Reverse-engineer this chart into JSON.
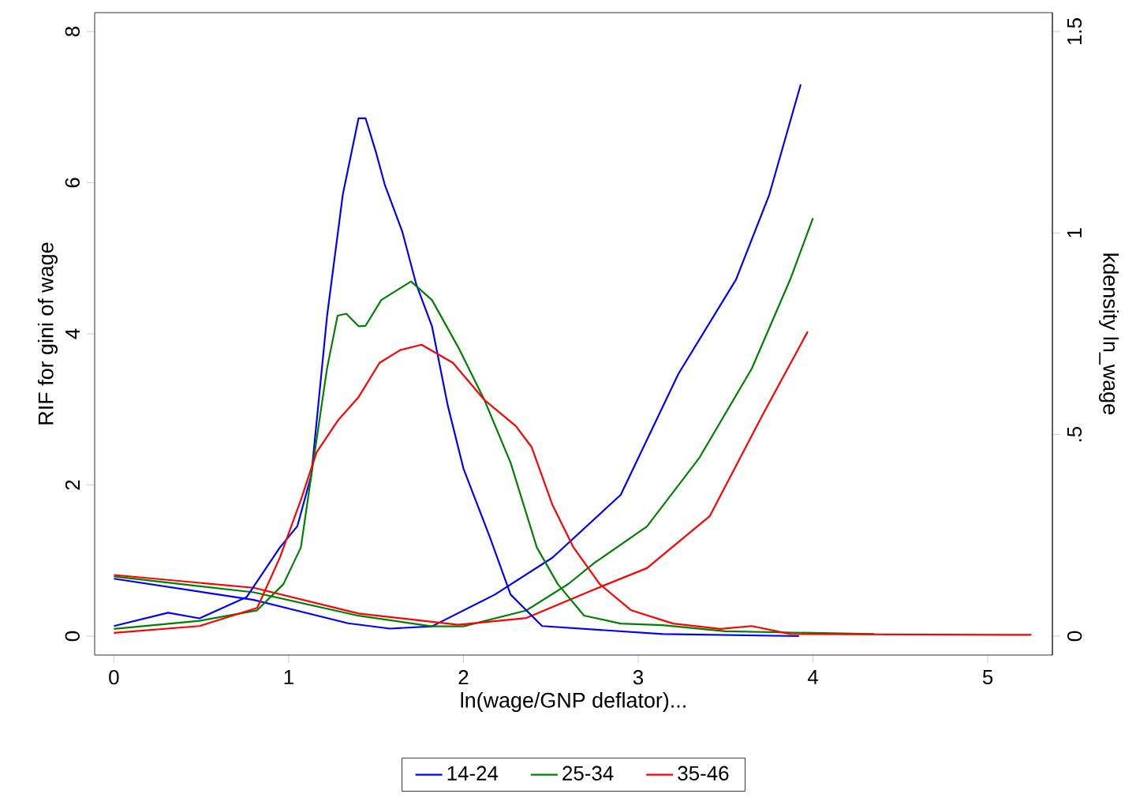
{
  "chart_data": {
    "type": "line",
    "xlabel": "ln(wage/GNP deflator)...",
    "ylabel": "RIF for gini of wage",
    "y2label": "kdensity ln_wage",
    "xlim": [
      -0.11,
      5.37
    ],
    "ylim": [
      -0.25,
      8.25
    ],
    "y2lim": [
      -0.047,
      1.547
    ],
    "xticks": [
      0,
      1,
      2,
      3,
      4,
      5
    ],
    "yticks": [
      0,
      2,
      4,
      6,
      8
    ],
    "y2ticks": [
      0,
      {
        "value": 0.5,
        "label": ".5"
      },
      1,
      1.5
    ],
    "legend": "bottom",
    "marker": "none",
    "series": [
      {
        "name": "14-24",
        "color": "#0000ff",
        "axis": "y",
        "x": [
          0,
          0.8,
          1.34,
          1.58,
          1.82,
          2.18,
          2.51,
          2.9,
          3.23,
          3.56,
          3.75,
          3.93
        ],
        "values": [
          0.76,
          0.48,
          0.17,
          0.1,
          0.13,
          0.55,
          1.04,
          1.87,
          3.47,
          4.72,
          5.84,
          7.3
        ]
      },
      {
        "name": "25-34",
        "color": "#008000",
        "axis": "y",
        "x": [
          0,
          0.8,
          1.4,
          1.82,
          2.0,
          2.36,
          2.6,
          2.75,
          3.05,
          3.35,
          3.65,
          3.87,
          4.0
        ],
        "values": [
          0.79,
          0.58,
          0.27,
          0.13,
          0.13,
          0.34,
          0.69,
          0.97,
          1.45,
          2.36,
          3.54,
          4.72,
          5.53
        ]
      },
      {
        "name": "35-46",
        "color": "#ff0000",
        "axis": "y",
        "x": [
          0,
          0.8,
          1.4,
          1.97,
          2.36,
          2.75,
          3.05,
          3.41,
          3.71,
          3.97
        ],
        "values": [
          0.81,
          0.64,
          0.3,
          0.15,
          0.24,
          0.62,
          0.9,
          1.59,
          2.92,
          4.03
        ]
      },
      {
        "color": "#0000ff",
        "axis": "y2",
        "x": [
          0,
          0.31,
          0.49,
          0.76,
          0.95,
          1.05,
          1.13,
          1.22,
          1.31,
          1.4,
          1.44,
          1.5,
          1.55,
          1.65,
          1.73,
          1.82,
          1.91,
          2.0,
          2.15,
          2.27,
          2.45,
          3.14,
          3.92
        ],
        "values": [
          0.025,
          0.058,
          0.044,
          0.097,
          0.22,
          0.273,
          0.4,
          0.795,
          1.096,
          1.285,
          1.285,
          1.2,
          1.12,
          1.004,
          0.873,
          0.769,
          0.573,
          0.416,
          0.247,
          0.103,
          0.025,
          0.005,
          0
        ]
      },
      {
        "color": "#008000",
        "axis": "y2",
        "x": [
          0,
          0.49,
          0.82,
          0.97,
          1.07,
          1.13,
          1.22,
          1.28,
          1.33,
          1.4,
          1.44,
          1.53,
          1.7,
          1.82,
          1.97,
          2.12,
          2.27,
          2.42,
          2.54,
          2.69,
          2.9,
          3.14,
          3.5,
          4.35
        ],
        "values": [
          0.018,
          0.038,
          0.064,
          0.129,
          0.22,
          0.4,
          0.665,
          0.795,
          0.8,
          0.769,
          0.77,
          0.834,
          0.88,
          0.834,
          0.717,
          0.586,
          0.43,
          0.22,
          0.129,
          0.051,
          0.031,
          0.027,
          0.012,
          0.005
        ]
      },
      {
        "color": "#ff0000",
        "axis": "y2",
        "x": [
          0,
          0.49,
          0.82,
          0.95,
          1.07,
          1.16,
          1.28,
          1.4,
          1.52,
          1.64,
          1.76,
          1.94,
          2.12,
          2.3,
          2.39,
          2.51,
          2.63,
          2.78,
          2.96,
          3.2,
          3.47,
          3.65,
          3.87,
          5.25
        ],
        "values": [
          0.008,
          0.025,
          0.07,
          0.195,
          0.338,
          0.456,
          0.534,
          0.593,
          0.678,
          0.71,
          0.723,
          0.678,
          0.586,
          0.521,
          0.469,
          0.325,
          0.22,
          0.129,
          0.064,
          0.031,
          0.018,
          0.025,
          0.005,
          0.003
        ]
      }
    ]
  }
}
